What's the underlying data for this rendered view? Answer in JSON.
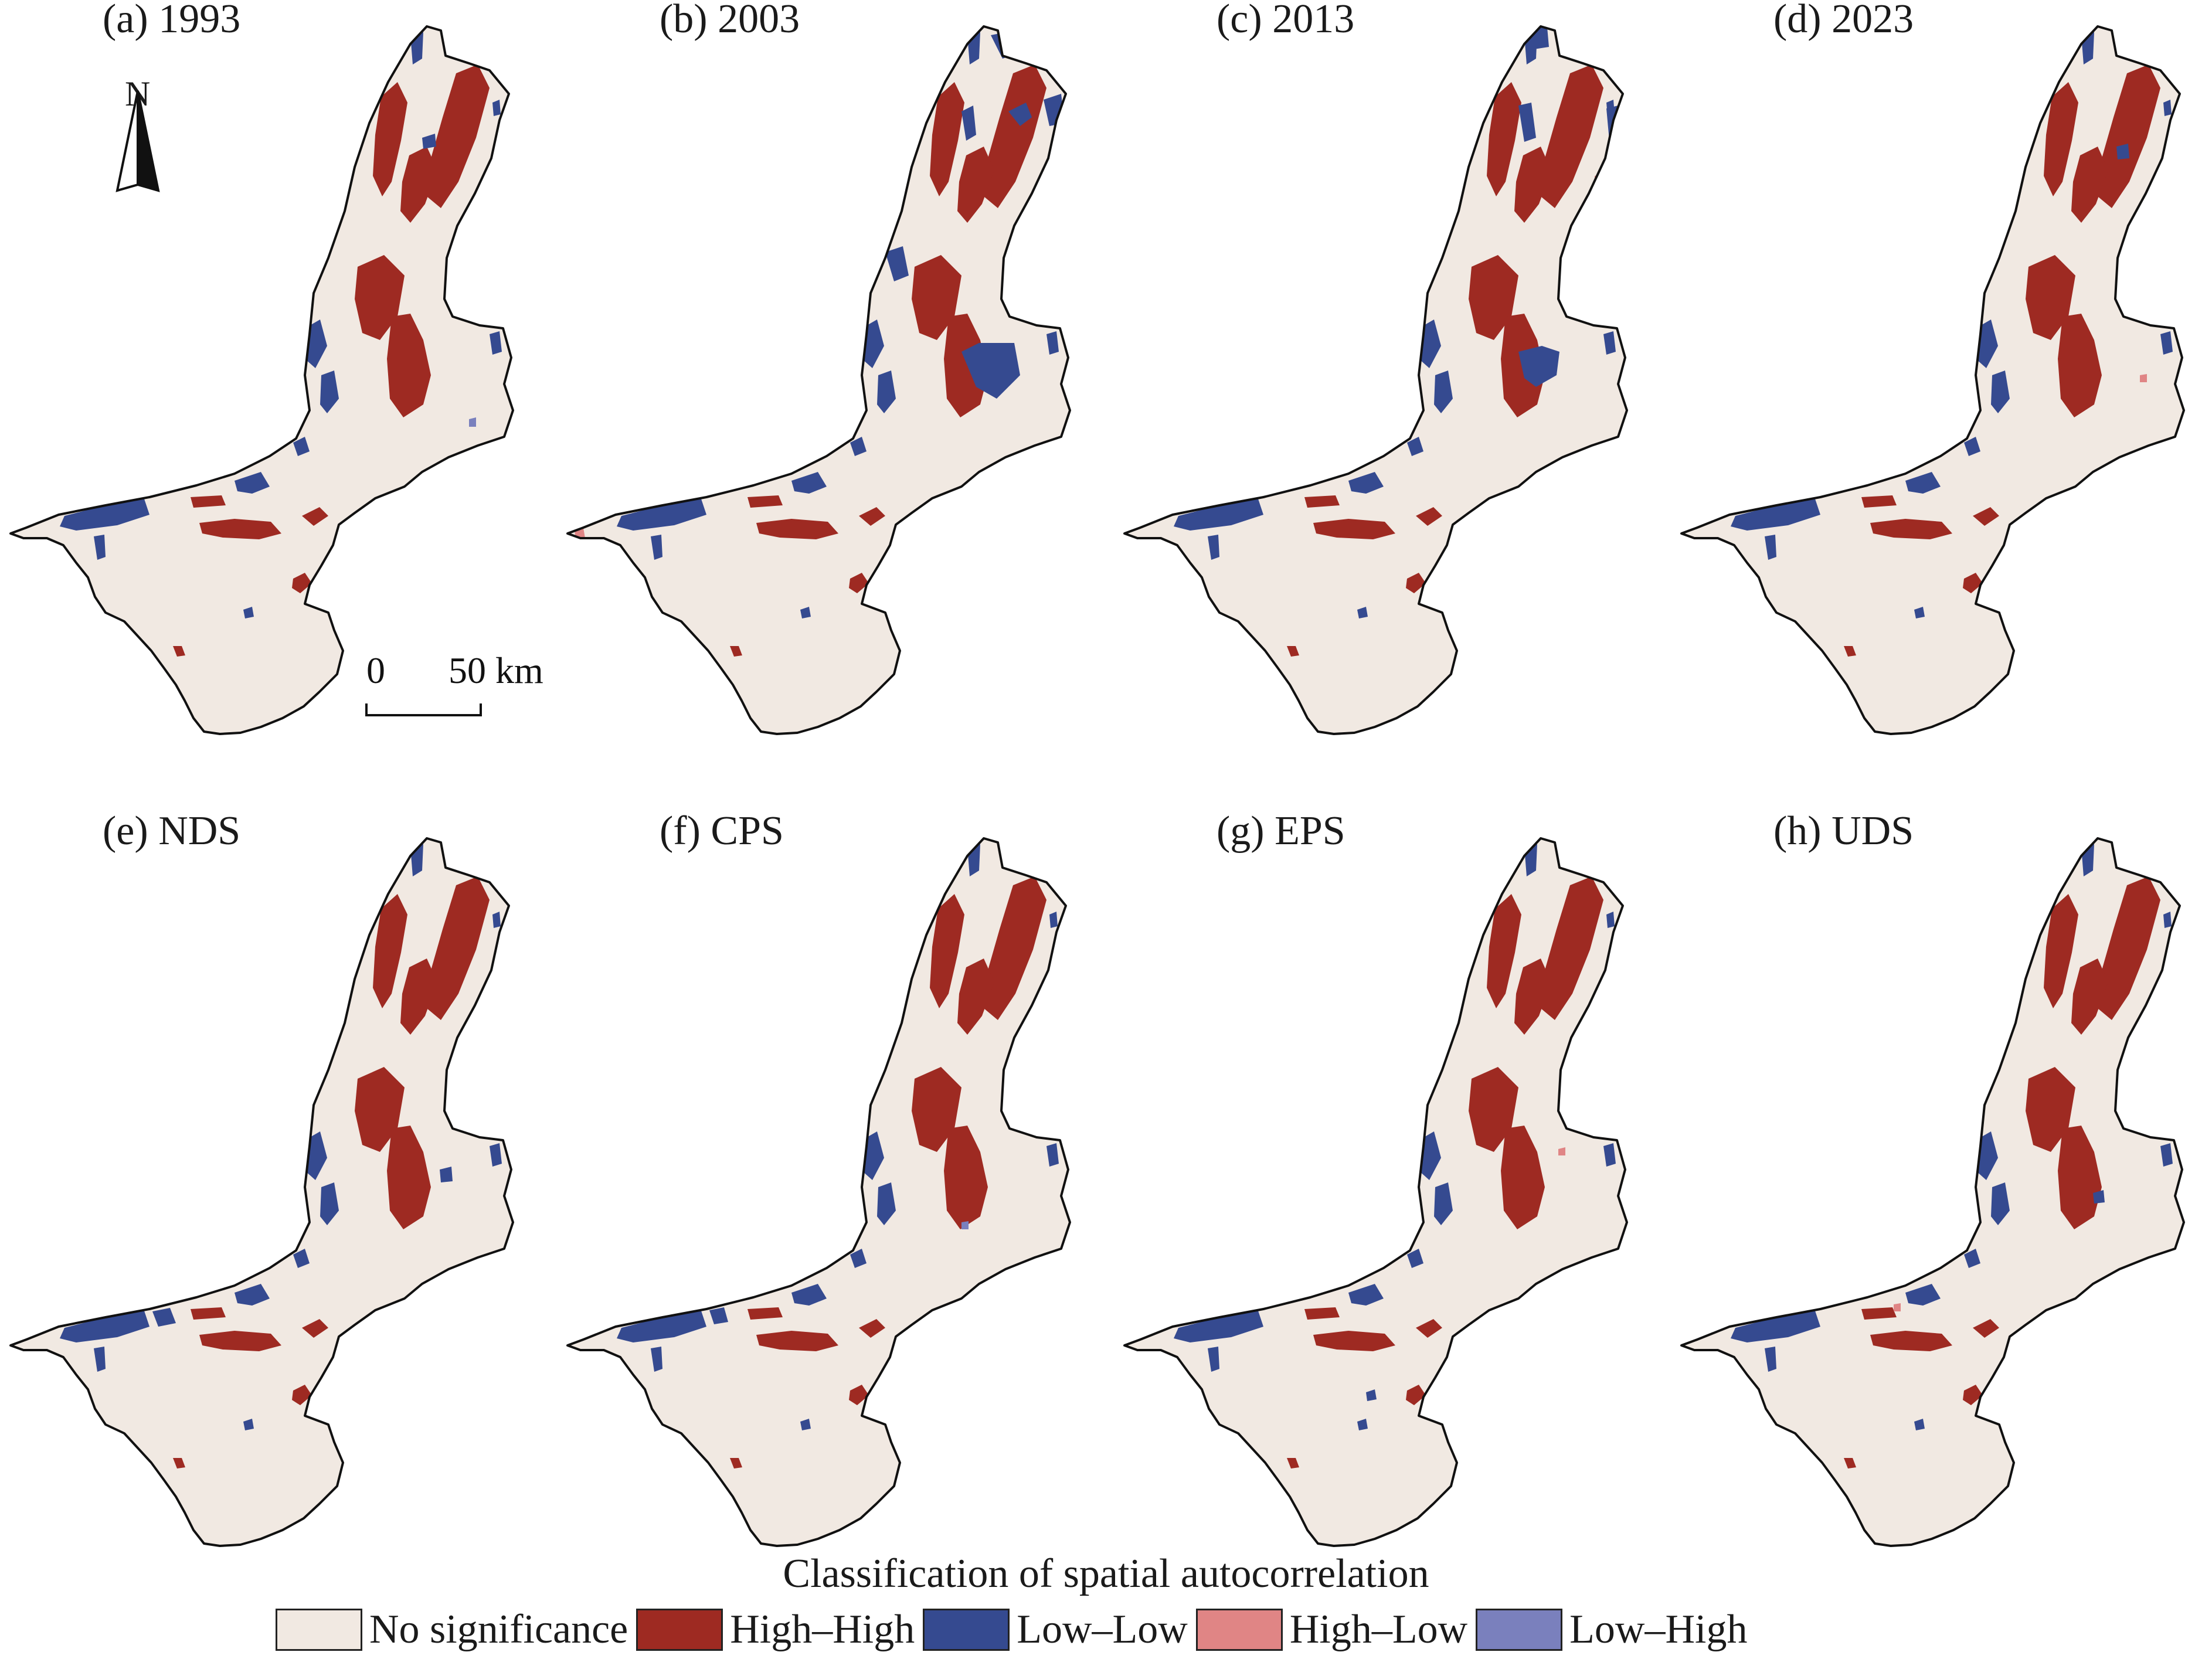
{
  "figure": {
    "panels": [
      {
        "label": "(a) 1993"
      },
      {
        "label": "(b) 2003"
      },
      {
        "label": "(c) 2013"
      },
      {
        "label": "(d) 2023"
      },
      {
        "label": "(e) NDS"
      },
      {
        "label": "(f) CPS"
      },
      {
        "label": "(g) EPS"
      },
      {
        "label": "(h) UDS"
      }
    ],
    "north_arrow": {
      "label": "N"
    },
    "scale_bar": {
      "start_label": "0",
      "end_label": "50 km"
    }
  },
  "legend": {
    "title": "Classification of spatial autocorrelation",
    "items": [
      {
        "label": "No significance",
        "color": "#f1e9e2"
      },
      {
        "label": "High–High",
        "color": "#9e2a22"
      },
      {
        "label": "Low–Low",
        "color": "#354a90"
      },
      {
        "label": "High–Low",
        "color": "#e08585"
      },
      {
        "label": "Low–High",
        "color": "#7a80bd"
      }
    ]
  },
  "colors": {
    "region_fill": "#f1e9e2",
    "boundary": "#111111"
  }
}
